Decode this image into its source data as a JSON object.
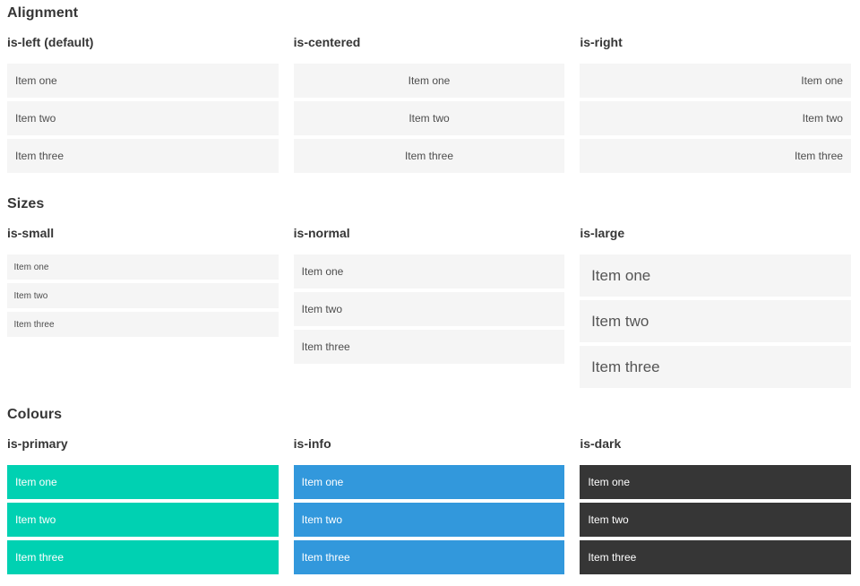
{
  "sections": [
    {
      "title": "Alignment",
      "columns": [
        {
          "subtitle": "is-left (default)",
          "items": [
            "Item one",
            "Item two",
            "Item three"
          ]
        },
        {
          "subtitle": "is-centered",
          "items": [
            "Item one",
            "Item two",
            "Item three"
          ]
        },
        {
          "subtitle": "is-right",
          "items": [
            "Item one",
            "Item two",
            "Item three"
          ]
        }
      ]
    },
    {
      "title": "Sizes",
      "columns": [
        {
          "subtitle": "is-small",
          "items": [
            "Item one",
            "Item two",
            "Item three"
          ]
        },
        {
          "subtitle": "is-normal",
          "items": [
            "Item one",
            "Item two",
            "Item three"
          ]
        },
        {
          "subtitle": "is-large",
          "items": [
            "Item one",
            "Item two",
            "Item three"
          ]
        }
      ]
    },
    {
      "title": "Colours",
      "columns": [
        {
          "subtitle": "is-primary",
          "items": [
            "Item one",
            "Item two",
            "Item three"
          ]
        },
        {
          "subtitle": "is-info",
          "items": [
            "Item one",
            "Item two",
            "Item three"
          ]
        },
        {
          "subtitle": "is-dark",
          "items": [
            "Item one",
            "Item two",
            "Item three"
          ]
        }
      ]
    }
  ],
  "colors": {
    "primary": "#00d1b2",
    "info": "#3298dc",
    "dark": "#363636",
    "item_background": "#f5f5f5"
  }
}
